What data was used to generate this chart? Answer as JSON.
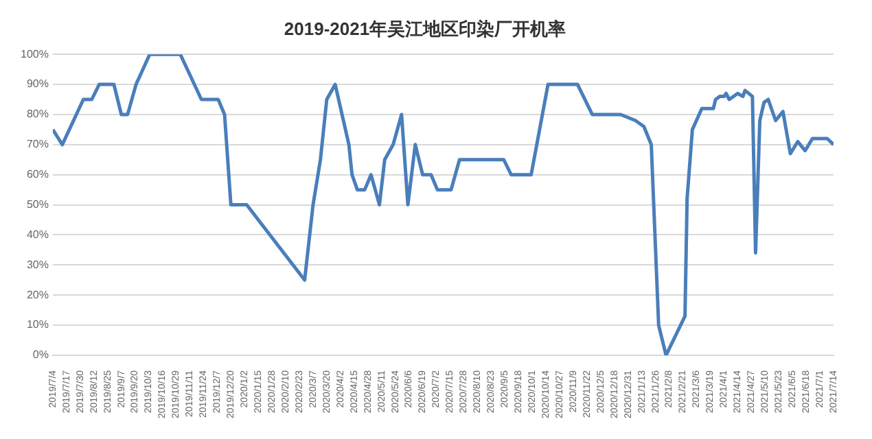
{
  "chart_data": {
    "type": "line",
    "title": "2019-2021年吴江地区印染厂开机率",
    "grid": "y",
    "legend": false,
    "marker": "none",
    "x": [
      "2019-07-04",
      "2019-07-13",
      "2019-08-02",
      "2019-08-10",
      "2019-08-17",
      "2019-08-31",
      "2019-09-07",
      "2019-09-13",
      "2019-09-21",
      "2019-10-04",
      "2019-11-02",
      "2019-11-22",
      "2019-12-08",
      "2019-12-14",
      "2019-12-20",
      "2020-01-04",
      "2020-02-28",
      "2020-03-07",
      "2020-03-14",
      "2020-03-20",
      "2020-03-28",
      "2020-04-10",
      "2020-04-13",
      "2020-04-18",
      "2020-04-25",
      "2020-05-01",
      "2020-05-09",
      "2020-05-14",
      "2020-05-22",
      "2020-05-30",
      "2020-06-05",
      "2020-06-12",
      "2020-06-19",
      "2020-06-27",
      "2020-07-03",
      "2020-07-16",
      "2020-07-24",
      "2020-09-04",
      "2020-09-11",
      "2020-09-30",
      "2020-10-16",
      "2020-11-13",
      "2020-11-27",
      "2020-12-24",
      "2021-01-07",
      "2021-01-15",
      "2021-01-22",
      "2021-01-29",
      "2021-02-05",
      "2021-02-23",
      "2021-02-25",
      "2021-03-02",
      "2021-03-11",
      "2021-03-22",
      "2021-03-24",
      "2021-03-28",
      "2021-04-01",
      "2021-04-03",
      "2021-04-06",
      "2021-04-14",
      "2021-04-19",
      "2021-04-21",
      "2021-04-28",
      "2021-05-01",
      "2021-05-05",
      "2021-05-09",
      "2021-05-13",
      "2021-05-20",
      "2021-05-27",
      "2021-06-03",
      "2021-06-10",
      "2021-06-17",
      "2021-06-24",
      "2021-07-08",
      "2021-07-14"
    ],
    "series": [
      {
        "color": "#4a7ebb",
        "values": [
          75,
          70,
          85,
          85,
          90,
          90,
          80,
          80,
          90,
          100,
          100,
          85,
          85,
          80,
          50,
          50,
          25,
          50,
          65,
          85,
          90,
          70,
          60,
          55,
          55,
          60,
          50,
          65,
          70,
          80,
          50,
          70,
          60,
          60,
          55,
          55,
          65,
          65,
          60,
          60,
          90,
          90,
          80,
          80,
          78,
          76,
          70,
          10,
          0,
          13,
          52,
          75,
          82,
          82,
          85,
          86,
          86,
          87,
          85,
          87,
          86,
          88,
          86,
          34,
          78,
          84,
          85,
          78,
          81,
          67,
          71,
          68,
          72,
          72,
          70
        ]
      }
    ],
    "ylim": [
      0,
      100
    ],
    "yticks": [
      {
        "value": 0,
        "label": "0%"
      },
      {
        "value": 10,
        "label": "10%"
      },
      {
        "value": 20,
        "label": "20%"
      },
      {
        "value": 30,
        "label": "30%"
      },
      {
        "value": 40,
        "label": "40%"
      },
      {
        "value": 50,
        "label": "50%"
      },
      {
        "value": 60,
        "label": "60%"
      },
      {
        "value": 70,
        "label": "70%"
      },
      {
        "value": 80,
        "label": "80%"
      },
      {
        "value": 90,
        "label": "90%"
      },
      {
        "value": 100,
        "label": "100%"
      }
    ],
    "xlim": [
      "2019-07-04",
      "2021-07-14"
    ],
    "xticks": [
      {
        "value": "2019-07-04",
        "label": "2019/7/4"
      },
      {
        "value": "2019-07-17",
        "label": "2019/7/17"
      },
      {
        "value": "2019-07-30",
        "label": "2019/7/30"
      },
      {
        "value": "2019-08-12",
        "label": "2019/8/12"
      },
      {
        "value": "2019-08-25",
        "label": "2019/8/25"
      },
      {
        "value": "2019-09-07",
        "label": "2019/9/7"
      },
      {
        "value": "2019-09-20",
        "label": "2019/9/20"
      },
      {
        "value": "2019-10-03",
        "label": "2019/10/3"
      },
      {
        "value": "2019-10-16",
        "label": "2019/10/16"
      },
      {
        "value": "2019-10-29",
        "label": "2019/10/29"
      },
      {
        "value": "2019-11-11",
        "label": "2019/11/11"
      },
      {
        "value": "2019-11-24",
        "label": "2019/11/24"
      },
      {
        "value": "2019-12-07",
        "label": "2019/12/7"
      },
      {
        "value": "2019-12-20",
        "label": "2019/12/20"
      },
      {
        "value": "2020-01-02",
        "label": "2020/1/2"
      },
      {
        "value": "2020-01-15",
        "label": "2020/1/15"
      },
      {
        "value": "2020-01-28",
        "label": "2020/1/28"
      },
      {
        "value": "2020-02-10",
        "label": "2020/2/10"
      },
      {
        "value": "2020-02-23",
        "label": "2020/2/23"
      },
      {
        "value": "2020-03-07",
        "label": "2020/3/7"
      },
      {
        "value": "2020-03-20",
        "label": "2020/3/20"
      },
      {
        "value": "2020-04-02",
        "label": "2020/4/2"
      },
      {
        "value": "2020-04-15",
        "label": "2020/4/15"
      },
      {
        "value": "2020-04-28",
        "label": "2020/4/28"
      },
      {
        "value": "2020-05-11",
        "label": "2020/5/11"
      },
      {
        "value": "2020-05-24",
        "label": "2020/5/24"
      },
      {
        "value": "2020-06-06",
        "label": "2020/6/6"
      },
      {
        "value": "2020-06-19",
        "label": "2020/6/19"
      },
      {
        "value": "2020-07-02",
        "label": "2020/7/2"
      },
      {
        "value": "2020-07-15",
        "label": "2020/7/15"
      },
      {
        "value": "2020-07-28",
        "label": "2020/7/28"
      },
      {
        "value": "2020-08-10",
        "label": "2020/8/10"
      },
      {
        "value": "2020-08-23",
        "label": "2020/8/23"
      },
      {
        "value": "2020-09-05",
        "label": "2020/9/5"
      },
      {
        "value": "2020-09-18",
        "label": "2020/9/18"
      },
      {
        "value": "2020-10-01",
        "label": "2020/10/1"
      },
      {
        "value": "2020-10-14",
        "label": "2020/10/14"
      },
      {
        "value": "2020-10-27",
        "label": "2020/10/27"
      },
      {
        "value": "2020-11-09",
        "label": "2020/11/9"
      },
      {
        "value": "2020-11-22",
        "label": "2020/11/22"
      },
      {
        "value": "2020-12-05",
        "label": "2020/12/5"
      },
      {
        "value": "2020-12-18",
        "label": "2020/12/18"
      },
      {
        "value": "2020-12-31",
        "label": "2020/12/31"
      },
      {
        "value": "2021-01-13",
        "label": "2021/1/13"
      },
      {
        "value": "2021-01-26",
        "label": "2021/1/26"
      },
      {
        "value": "2021-02-08",
        "label": "2021/2/8"
      },
      {
        "value": "2021-02-21",
        "label": "2021/2/21"
      },
      {
        "value": "2021-03-06",
        "label": "2021/3/6"
      },
      {
        "value": "2021-03-19",
        "label": "2021/3/19"
      },
      {
        "value": "2021-04-01",
        "label": "2021/4/1"
      },
      {
        "value": "2021-04-14",
        "label": "2021/4/14"
      },
      {
        "value": "2021-04-27",
        "label": "2021/4/27"
      },
      {
        "value": "2021-05-10",
        "label": "2021/5/10"
      },
      {
        "value": "2021-05-23",
        "label": "2021/5/23"
      },
      {
        "value": "2021-06-05",
        "label": "2021/6/5"
      },
      {
        "value": "2021-06-18",
        "label": "2021/6/18"
      },
      {
        "value": "2021-07-01",
        "label": "2021/7/1"
      },
      {
        "value": "2021-07-14",
        "label": "2021/7/14"
      }
    ]
  }
}
